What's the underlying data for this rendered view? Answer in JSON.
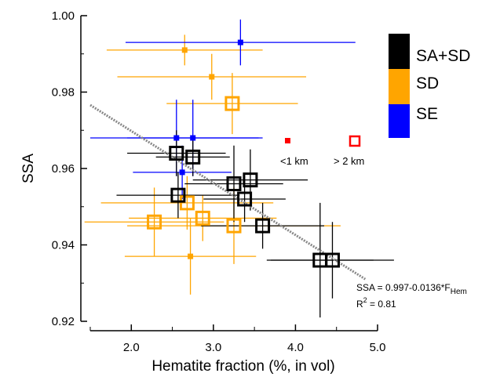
{
  "chart_data": {
    "type": "scatter",
    "xlabel": "Hematite fraction (%, in vol)",
    "ylabel": "SSA",
    "xlim": [
      1.5,
      5.0
    ],
    "ylim": [
      0.92,
      1.0
    ],
    "x_ticks": [
      "2.0",
      "3.0",
      "4.0",
      "5.0"
    ],
    "x_tick_values": [
      2.0,
      3.0,
      4.0,
      5.0
    ],
    "y_ticks": [
      "0.92",
      "0.94",
      "0.96",
      "0.98",
      "1.00"
    ],
    "y_tick_values": [
      0.92,
      0.94,
      0.96,
      0.98,
      1.0
    ],
    "grid": false,
    "legend_position": "top-right",
    "series": [
      {
        "name": "SA+SD",
        "color": "#000000",
        "points": [
          {
            "x": 2.55,
            "y": 0.964,
            "xerr": 0.6,
            "yerr": 0.006,
            "size": "large",
            "altitude": "high"
          },
          {
            "x": 2.75,
            "y": 0.963,
            "xerr": 0.45,
            "yerr": 0.005,
            "size": "large",
            "altitude": "high"
          },
          {
            "x": 2.57,
            "y": 0.953,
            "xerr": 0.75,
            "yerr": 0.006,
            "size": "large",
            "altitude": "high"
          },
          {
            "x": 3.25,
            "y": 0.956,
            "xerr": 0.6,
            "yerr": 0.01,
            "size": "large",
            "altitude": "high"
          },
          {
            "x": 3.45,
            "y": 0.957,
            "xerr": 0.7,
            "yerr": 0.008,
            "size": "large",
            "altitude": "high"
          },
          {
            "x": 3.38,
            "y": 0.952,
            "xerr": 0.5,
            "yerr": 0.006,
            "size": "large",
            "altitude": "high"
          },
          {
            "x": 3.6,
            "y": 0.945,
            "xerr": 0.75,
            "yerr": 0.006,
            "size": "large",
            "altitude": "high"
          },
          {
            "x": 4.3,
            "y": 0.936,
            "xerr": 0.65,
            "yerr": 0.015,
            "size": "large",
            "altitude": "high"
          },
          {
            "x": 4.45,
            "y": 0.936,
            "xerr": 0.75,
            "yerr": 0.01,
            "size": "large",
            "altitude": "high"
          }
        ]
      },
      {
        "name": "SD",
        "color": "#ffa500",
        "points": [
          {
            "x": 2.65,
            "y": 0.991,
            "xerr": 0.95,
            "yerr": 0.004,
            "size": "small",
            "altitude": "low"
          },
          {
            "x": 2.98,
            "y": 0.984,
            "xerr": 1.15,
            "yerr": 0.006,
            "size": "small",
            "altitude": "low"
          },
          {
            "x": 3.23,
            "y": 0.977,
            "xerr": 0.8,
            "yerr": 0.008,
            "size": "large",
            "altitude": "high"
          },
          {
            "x": 2.72,
            "y": 0.937,
            "xerr": 0.8,
            "yerr": 0.01,
            "size": "small",
            "altitude": "low"
          },
          {
            "x": 2.68,
            "y": 0.951,
            "xerr": 1.05,
            "yerr": 0.007,
            "size": "large",
            "altitude": "high"
          },
          {
            "x": 2.87,
            "y": 0.947,
            "xerr": 0.9,
            "yerr": 0.006,
            "size": "large",
            "altitude": "high"
          },
          {
            "x": 2.28,
            "y": 0.946,
            "xerr": 0.85,
            "yerr": 0.009,
            "size": "large",
            "altitude": "high"
          },
          {
            "x": 3.25,
            "y": 0.945,
            "xerr": 1.3,
            "yerr": 0.01,
            "size": "large",
            "altitude": "high"
          }
        ]
      },
      {
        "name": "SE",
        "color": "#0000ff",
        "points": [
          {
            "x": 3.33,
            "y": 0.993,
            "xerr": 1.4,
            "yerr": 0.006,
            "size": "small",
            "altitude": "low"
          },
          {
            "x": 2.55,
            "y": 0.968,
            "xerr": 1.05,
            "yerr": 0.01,
            "size": "small",
            "altitude": "low"
          },
          {
            "x": 2.75,
            "y": 0.968,
            "xerr": 0.8,
            "yerr": 0.01,
            "size": "small",
            "altitude": "low"
          },
          {
            "x": 2.62,
            "y": 0.959,
            "xerr": 0.6,
            "yerr": 0.007,
            "size": "small",
            "altitude": "low"
          }
        ]
      }
    ],
    "fit_line": {
      "intercept": 0.997,
      "slope": -0.0136,
      "x_range": [
        1.5,
        4.85
      ]
    },
    "annotations": {
      "equation_main": "SSA = 0.997-0.0136*F",
      "equation_sub": "Hem",
      "r2_main": "R",
      "r2_sup": "2",
      "r2_value": " = 0.81"
    },
    "altitude_legend": {
      "low_label": "<1 km",
      "high_label": "> 2 km",
      "color": "#ff0000"
    }
  }
}
